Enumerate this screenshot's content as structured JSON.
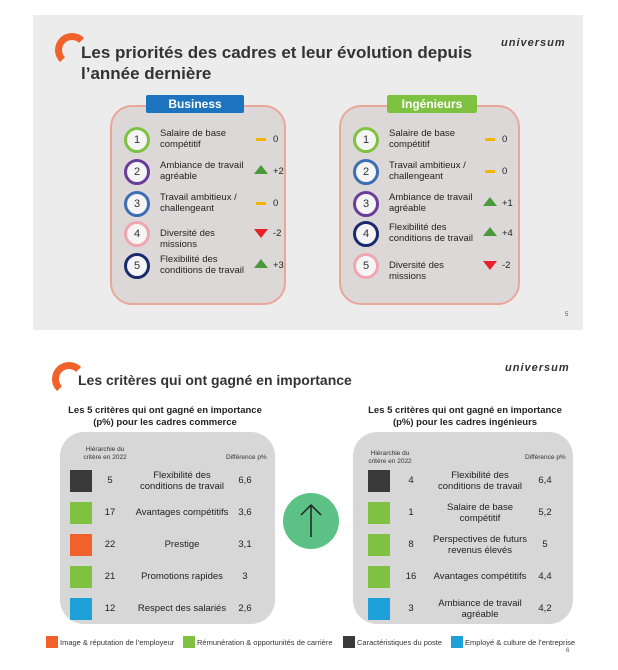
{
  "colors": {
    "orange": "#f0612b",
    "blue": "#1e73be",
    "green": "#7fc241",
    "dark": "#3a3a3a",
    "teal": "#1da1d8",
    "upArrow": "#4a9a3c",
    "downArrow": "#e8202a",
    "dash": "#f4b400",
    "centerCircle": "#5cc184"
  },
  "slide1": {
    "title": "Les priorités des cadres et leur évolution depuis l’année dernière",
    "logo": "universum",
    "page": "5",
    "business": {
      "title": "Business",
      "items": [
        {
          "rank": "1",
          "l1": "Salaire de base",
          "l2": "compétitif",
          "change": "0",
          "trend": "flat"
        },
        {
          "rank": "2",
          "l1": "Ambiance de travail",
          "l2": "agréable",
          "change": "+2",
          "trend": "up"
        },
        {
          "rank": "3",
          "l1": "Travail ambitieux /",
          "l2": "challengeant",
          "change": "0",
          "trend": "flat"
        },
        {
          "rank": "4",
          "l1": "Diversité des missions",
          "l2": "",
          "change": "-2",
          "trend": "down"
        },
        {
          "rank": "5",
          "l1": "Flexibilité des",
          "l2": "conditions de travail",
          "change": "+3",
          "trend": "up"
        }
      ]
    },
    "engineers": {
      "title": "Ingénieurs",
      "items": [
        {
          "rank": "1",
          "l1": "Salaire de base",
          "l2": "compétitif",
          "change": "0",
          "trend": "flat"
        },
        {
          "rank": "2",
          "l1": "Travail ambitieux /",
          "l2": "challengeant",
          "change": "0",
          "trend": "flat"
        },
        {
          "rank": "3",
          "l1": "Ambiance de travail",
          "l2": "agréable",
          "change": "+1",
          "trend": "up"
        },
        {
          "rank": "4",
          "l1": "Flexibilité des",
          "l2": "conditions de travail",
          "change": "+4",
          "trend": "up"
        },
        {
          "rank": "5",
          "l1": "Diversité des missions",
          "l2": "",
          "change": "-2",
          "trend": "down"
        }
      ]
    }
  },
  "slide2": {
    "title": "Les critères qui ont gagné en importance",
    "logo": "universum",
    "page": "6",
    "commerce": {
      "subtitle_l1": "Les 5 critères qui ont gagné en importance",
      "subtitle_l2": "(p%) pour les cadres commerce",
      "hdr_rank_l1": "Hiérarchie du",
      "hdr_rank_l2": "critère en 2022",
      "hdr_diff": "Différence p%",
      "rows": [
        {
          "rank": "5",
          "l1": "Flexibilité des",
          "l2": "conditions de travail",
          "diff": "6,6",
          "cat": "dark"
        },
        {
          "rank": "17",
          "l1": "Avantages compétitifs",
          "l2": "",
          "diff": "3,6",
          "cat": "green"
        },
        {
          "rank": "22",
          "l1": "Prestige",
          "l2": "",
          "diff": "3,1",
          "cat": "orange"
        },
        {
          "rank": "21",
          "l1": "Promotions rapides",
          "l2": "",
          "diff": "3",
          "cat": "green"
        },
        {
          "rank": "12",
          "l1": "Respect des salariés",
          "l2": "",
          "diff": "2,6",
          "cat": "teal"
        }
      ]
    },
    "engineers": {
      "subtitle_l1": "Les 5 critères qui ont gagné en importance",
      "subtitle_l2": "(p%) pour les cadres ingénieurs",
      "hdr_rank_l1": "Hiérarchie du",
      "hdr_rank_l2": "critère en 2022",
      "hdr_diff": "Différence p%",
      "rows": [
        {
          "rank": "4",
          "l1": "Flexibilité des",
          "l2": "conditions de travail",
          "diff": "6,4",
          "cat": "dark"
        },
        {
          "rank": "1",
          "l1": "Salaire de base",
          "l2": "compétitif",
          "diff": "5,2",
          "cat": "green"
        },
        {
          "rank": "8",
          "l1": "Perspectives de futurs",
          "l2": "revenus élevés",
          "diff": "5",
          "cat": "green"
        },
        {
          "rank": "16",
          "l1": "Avantages compétitifs",
          "l2": "",
          "diff": "4,4",
          "cat": "green"
        },
        {
          "rank": "3",
          "l1": "Ambiance de travail",
          "l2": "agréable",
          "diff": "4,2",
          "cat": "teal"
        }
      ]
    },
    "legend": [
      {
        "label": "Image & réputation de l’employeur",
        "cat": "orange"
      },
      {
        "label": "Rémunération & opportunités de carrière",
        "cat": "green"
      },
      {
        "label": "Caractéristiques du poste",
        "cat": "dark"
      },
      {
        "label": "Employé & culture de l’entreprise",
        "cat": "teal"
      }
    ]
  }
}
